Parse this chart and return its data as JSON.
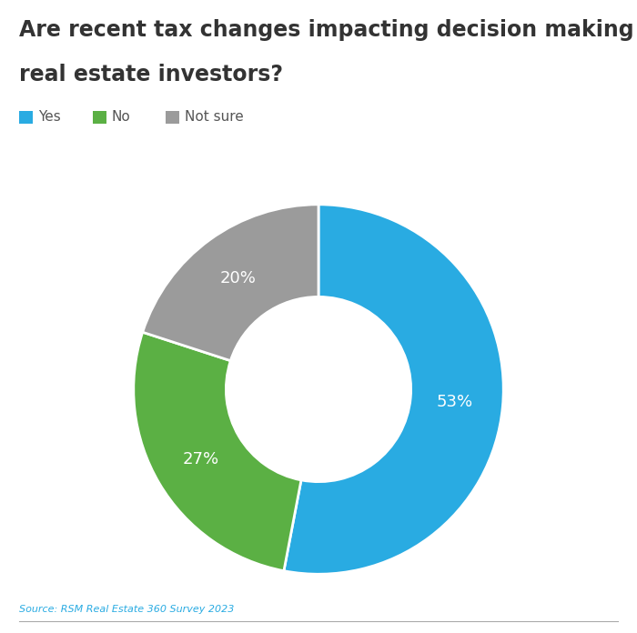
{
  "title_line1": "Are recent tax changes impacting decision making for",
  "title_line2": "real estate investors?",
  "title_fontsize": 17,
  "title_color": "#333333",
  "labels": [
    "Yes",
    "No",
    "Not sure"
  ],
  "values": [
    53,
    27,
    20
  ],
  "colors": [
    "#29ABE2",
    "#5BB044",
    "#9B9B9B"
  ],
  "pct_labels": [
    "53%",
    "27%",
    "20%"
  ],
  "pct_colors": [
    "#ffffff",
    "#ffffff",
    "#ffffff"
  ],
  "legend_labels": [
    "Yes",
    "No",
    "Not sure"
  ],
  "source_text": "Source: RSM Real Estate 360 Survey 2023",
  "source_color": "#29ABE2",
  "background_color": "#ffffff",
  "text_color": "#555555",
  "pct_fontsize": 13,
  "legend_fontsize": 11,
  "startangle": 90
}
